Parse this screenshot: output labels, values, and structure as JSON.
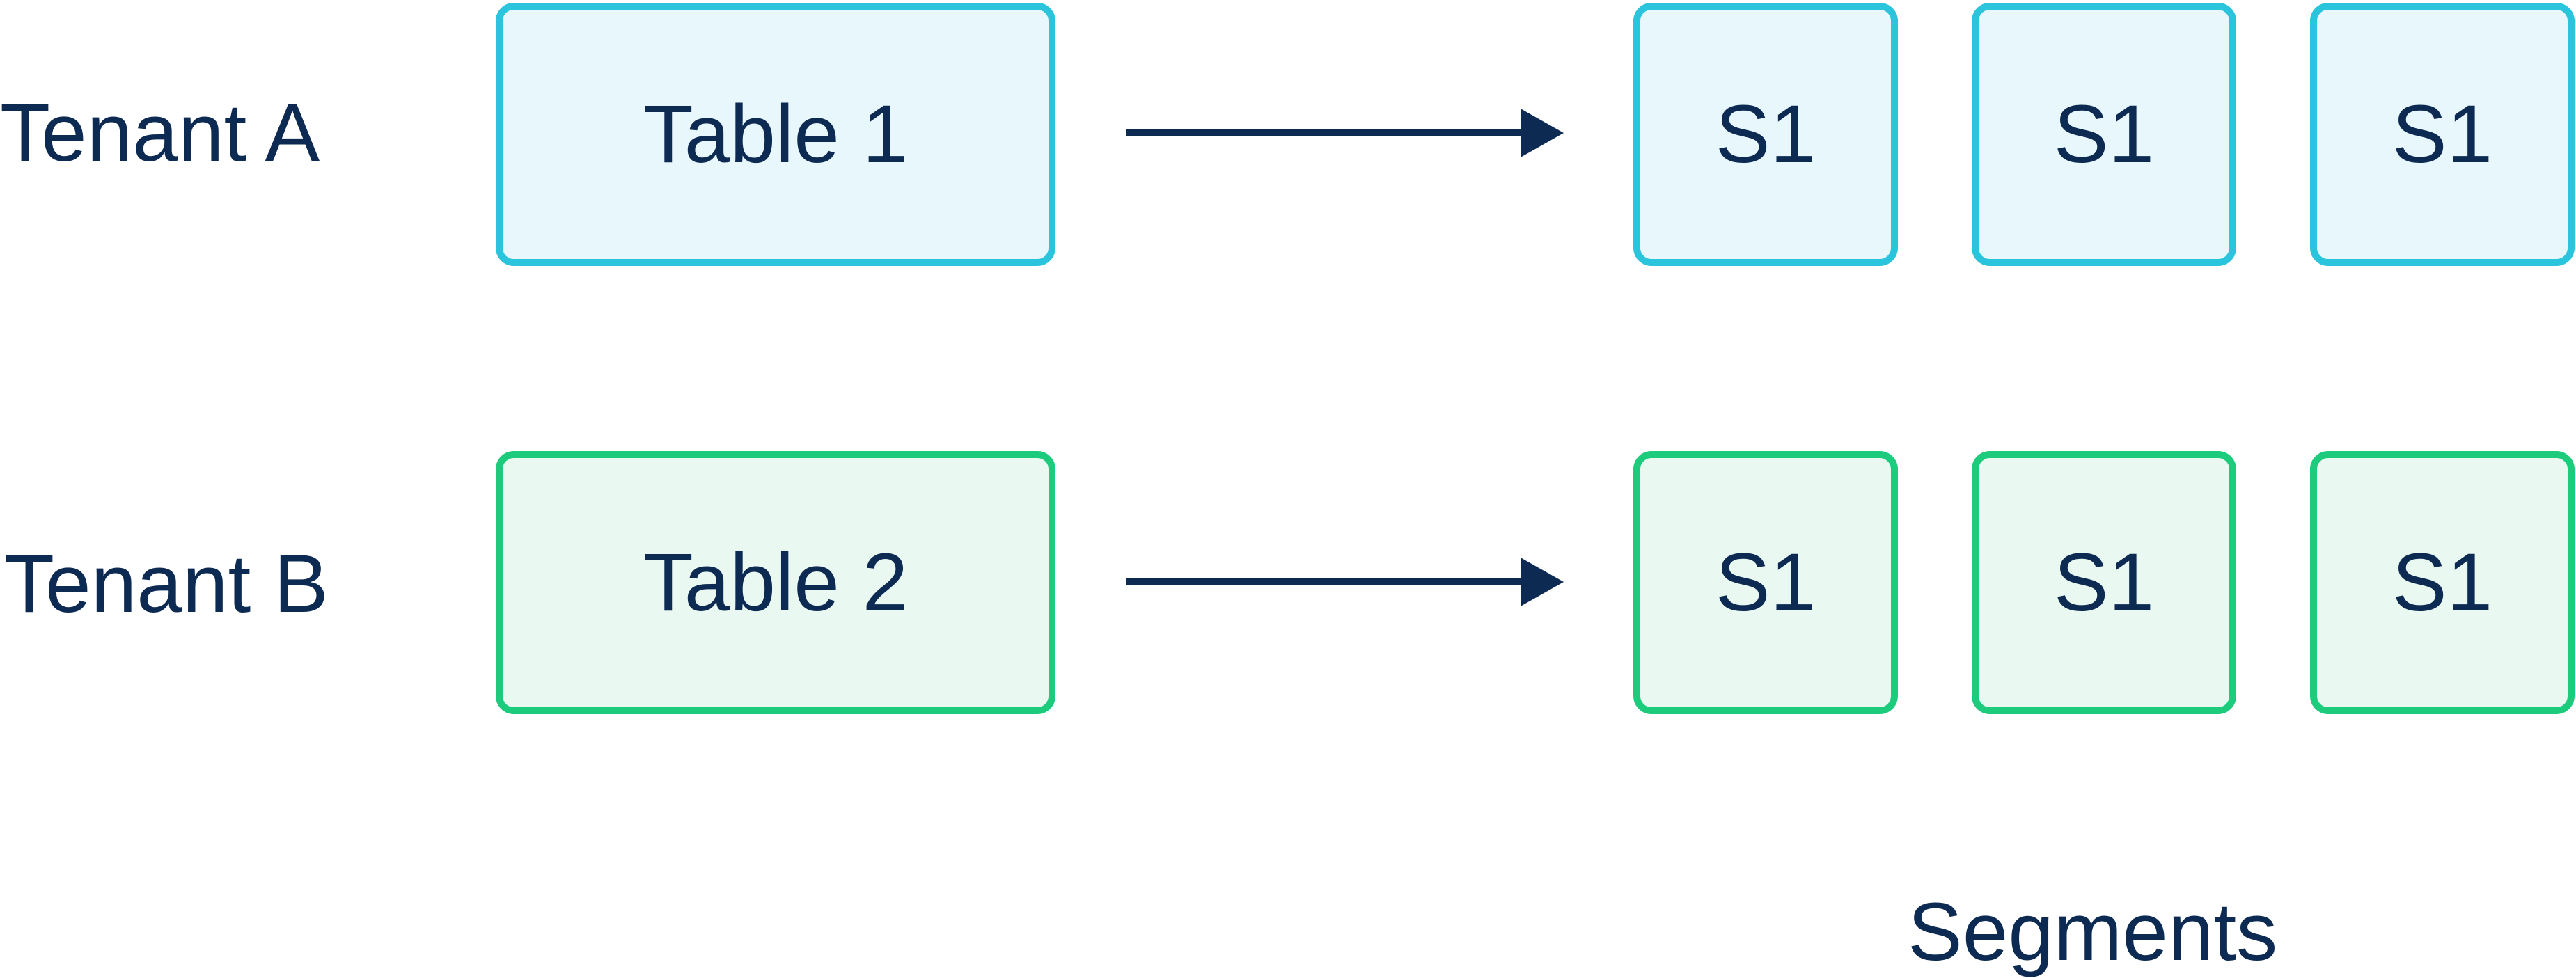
{
  "colors": {
    "text": "#0c2a52",
    "tenant_a_border": "#2ac4dc",
    "tenant_a_fill": "#e8f7fb",
    "tenant_b_border": "#1ccb7c",
    "tenant_b_fill": "#e9f8f0",
    "arrow": "#0c2a52"
  },
  "rows": [
    {
      "tenant": "Tenant A",
      "table": "Table 1",
      "segments": [
        "S1",
        "S1",
        "S1"
      ]
    },
    {
      "tenant": "Tenant B",
      "table": "Table 2",
      "segments": [
        "S1",
        "S1",
        "S1"
      ]
    }
  ],
  "segments_caption": "Segments"
}
